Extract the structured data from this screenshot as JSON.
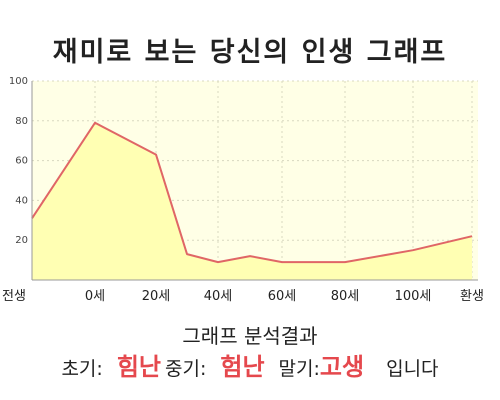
{
  "title": "재미로 보는 당신의 인생 그래프",
  "chart_data": {
    "type": "area",
    "categories": [
      "전생",
      "0세",
      "20세",
      "40세",
      "60세",
      "80세",
      "100세",
      "환생"
    ],
    "x": [
      -1,
      0,
      20,
      30,
      40,
      50,
      60,
      80,
      100,
      120
    ],
    "y": [
      31,
      79,
      63,
      13,
      9,
      12,
      9,
      9,
      15,
      22
    ],
    "ylim": [
      0,
      100
    ],
    "yticks": [
      "20",
      "40",
      "60",
      "80",
      "100"
    ],
    "grid": true,
    "colors": {
      "line": "#e06666",
      "fill": "#ffffb3",
      "plot_bg": "#ffffe6"
    }
  },
  "analysis": {
    "heading": "그래프 분석결과",
    "early_label": "초기:",
    "early_value": "힘난",
    "middle_label": "중기:",
    "middle_value": "험난",
    "late_label": "말기:",
    "late_value": "고생",
    "suffix": "입니다"
  }
}
